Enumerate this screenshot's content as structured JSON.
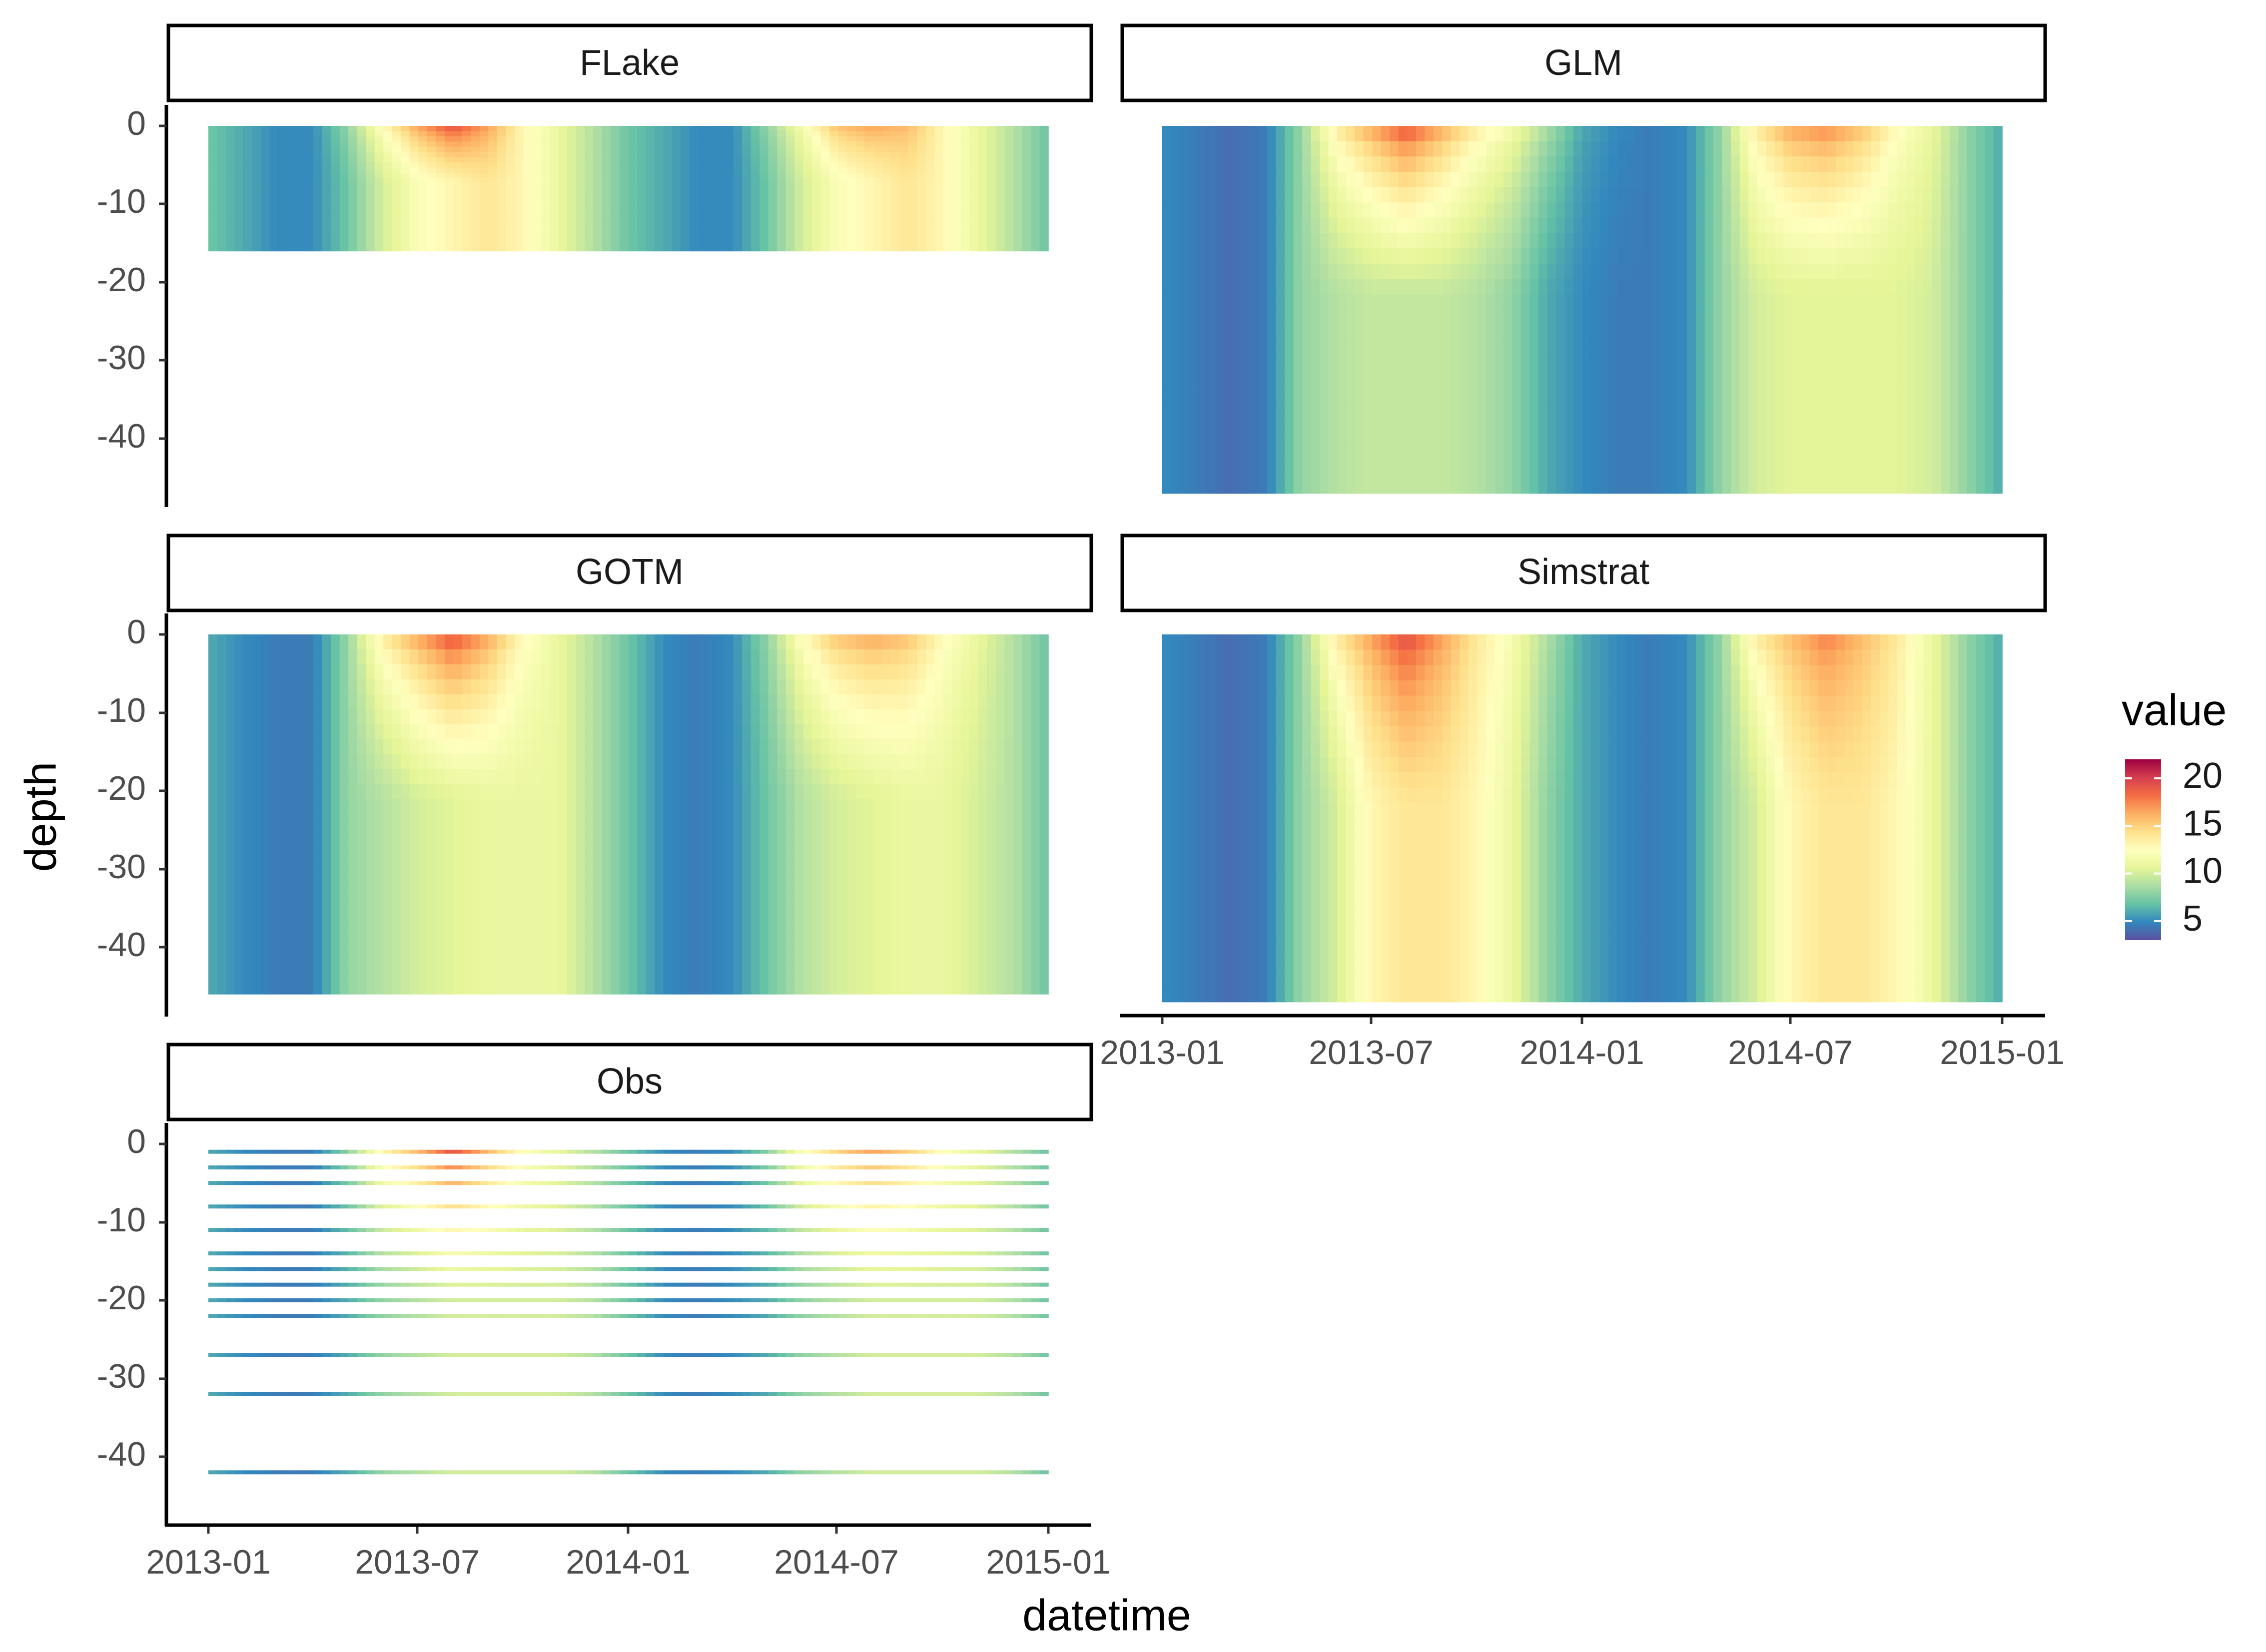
{
  "chart_data": {
    "type": "heatmap",
    "layout": "faceted 3x2 grid, shared color scale",
    "xlabel": "datetime",
    "ylabel": "depth",
    "x_ticks": [
      "2013-01",
      "2013-07",
      "2014-01",
      "2014-07",
      "2015-01"
    ],
    "x_range": [
      "2013-01-01",
      "2015-01-01"
    ],
    "y_ticks": [
      0,
      -10,
      -20,
      -30,
      -40
    ],
    "y_range": [
      -48,
      2
    ],
    "legend": {
      "title": "value",
      "position": "right",
      "ticks": [
        20,
        15,
        10,
        5
      ],
      "range": [
        3,
        22
      ],
      "palette": [
        "#5e4fa2",
        "#3288bd",
        "#66c2a5",
        "#abdda4",
        "#e6f598",
        "#ffffbf",
        "#fee08b",
        "#fdae61",
        "#f46d43",
        "#d53e4f",
        "#9e0142"
      ]
    },
    "facets": [
      {
        "name": "FLake",
        "kind": "model",
        "depth_bottom": -16,
        "dates": [
          "2013-01-01",
          "2013-02-01",
          "2013-03-01",
          "2013-04-01",
          "2013-05-01",
          "2013-06-01",
          "2013-07-01",
          "2013-08-01",
          "2013-09-01",
          "2013-10-01",
          "2013-11-01",
          "2013-12-01",
          "2014-01-01",
          "2014-02-01",
          "2014-03-01",
          "2014-04-01",
          "2014-05-01",
          "2014-06-01",
          "2014-07-01",
          "2014-08-01",
          "2014-09-01",
          "2014-10-01",
          "2014-11-01",
          "2014-12-01",
          "2015-01-01"
        ],
        "surface": [
          7,
          6,
          5,
          5,
          8,
          13,
          17,
          20,
          17,
          13,
          11,
          9,
          7,
          6,
          5,
          5,
          8,
          12,
          16,
          17,
          16,
          13,
          11,
          9,
          7
        ],
        "bottom": [
          7,
          6,
          5,
          5,
          7,
          10,
          12,
          13,
          14,
          13,
          11,
          9,
          7,
          6,
          5,
          5,
          7,
          10,
          12,
          13,
          14,
          13,
          11,
          9,
          7
        ]
      },
      {
        "name": "GLM",
        "kind": "model",
        "depth_bottom": -47,
        "dates": [
          "2013-01-01",
          "2013-02-01",
          "2013-03-01",
          "2013-04-01",
          "2013-05-01",
          "2013-06-01",
          "2013-07-01",
          "2013-08-01",
          "2013-09-01",
          "2013-10-01",
          "2013-11-01",
          "2013-12-01",
          "2014-01-01",
          "2014-02-01",
          "2014-03-01",
          "2014-04-01",
          "2014-05-01",
          "2014-06-01",
          "2014-07-01",
          "2014-08-01",
          "2014-09-01",
          "2014-10-01",
          "2014-11-01",
          "2014-12-01",
          "2015-01-01"
        ],
        "surface": [
          5,
          4.5,
          4,
          4.5,
          8,
          14,
          17,
          20,
          17,
          14,
          12,
          9,
          6,
          5,
          4.5,
          5,
          8,
          14,
          17,
          18,
          16,
          13,
          11,
          8,
          6
        ],
        "bottom": [
          5,
          4.5,
          4,
          4.5,
          8,
          9,
          9.5,
          9.5,
          9.5,
          9,
          8,
          6,
          5,
          4.5,
          4.5,
          5,
          8,
          10,
          10.5,
          10.5,
          10.5,
          10.5,
          10,
          8,
          6
        ]
      },
      {
        "name": "GOTM",
        "kind": "model",
        "depth_bottom": -46,
        "dates": [
          "2013-01-01",
          "2013-02-01",
          "2013-03-01",
          "2013-04-01",
          "2013-05-01",
          "2013-06-01",
          "2013-07-01",
          "2013-08-01",
          "2013-09-01",
          "2013-10-01",
          "2013-11-01",
          "2013-12-01",
          "2014-01-01",
          "2014-02-01",
          "2014-03-01",
          "2014-04-01",
          "2014-05-01",
          "2014-06-01",
          "2014-07-01",
          "2014-08-01",
          "2014-09-01",
          "2014-10-01",
          "2014-11-01",
          "2014-12-01",
          "2015-01-01"
        ],
        "surface": [
          6,
          5,
          4.5,
          4.5,
          8,
          14,
          17,
          20,
          17,
          13,
          11,
          9,
          7,
          5,
          4.5,
          5,
          8,
          13,
          16,
          17,
          16,
          13,
          11,
          9,
          7
        ],
        "bottom": [
          6,
          5,
          4.5,
          4.5,
          8,
          9,
          10,
          10.5,
          11,
          11,
          11,
          9,
          7,
          5,
          4.5,
          5,
          7,
          9,
          10,
          10.5,
          11,
          11,
          10,
          9,
          7
        ]
      },
      {
        "name": "Simstrat",
        "kind": "model",
        "depth_bottom": -47,
        "dates": [
          "2013-01-01",
          "2013-02-01",
          "2013-03-01",
          "2013-04-01",
          "2013-05-01",
          "2013-06-01",
          "2013-07-01",
          "2013-08-01",
          "2013-09-01",
          "2013-10-01",
          "2013-11-01",
          "2013-12-01",
          "2014-01-01",
          "2014-02-01",
          "2014-03-01",
          "2014-04-01",
          "2014-05-01",
          "2014-06-01",
          "2014-07-01",
          "2014-08-01",
          "2014-09-01",
          "2014-10-01",
          "2014-11-01",
          "2014-12-01",
          "2015-01-01"
        ],
        "surface": [
          5,
          4.5,
          4,
          4.5,
          8,
          14,
          17,
          20,
          17,
          14,
          12,
          9,
          6,
          5,
          4.5,
          5,
          8,
          14,
          16,
          18,
          16,
          14,
          11,
          8,
          6
        ],
        "bottom": [
          5,
          4.5,
          4,
          4.5,
          8,
          10,
          13,
          14,
          14,
          13,
          11,
          8,
          6,
          5,
          4.5,
          5,
          8,
          10,
          13,
          14,
          14,
          13,
          11,
          8,
          6
        ]
      },
      {
        "name": "Obs",
        "kind": "observations",
        "depths": [
          -1,
          -3,
          -5,
          -8,
          -11,
          -14,
          -16,
          -18,
          -20,
          -22,
          -27,
          -32,
          -42
        ],
        "dates": [
          "2013-01-01",
          "2013-02-01",
          "2013-03-01",
          "2013-04-01",
          "2013-05-01",
          "2013-06-01",
          "2013-07-01",
          "2013-08-01",
          "2013-09-01",
          "2013-10-01",
          "2013-11-01",
          "2013-12-01",
          "2014-01-01",
          "2014-02-01",
          "2014-03-01",
          "2014-04-01",
          "2014-05-01",
          "2014-06-01",
          "2014-07-01",
          "2014-08-01",
          "2014-09-01",
          "2014-10-01",
          "2014-11-01",
          "2014-12-01",
          "2015-01-01"
        ],
        "surface": [
          6,
          5,
          4.5,
          4.5,
          8,
          14,
          17,
          21,
          17,
          13,
          11,
          9,
          7,
          5,
          4.5,
          5,
          8,
          13,
          16,
          18,
          16,
          13,
          11,
          9,
          7
        ],
        "bottom": [
          6,
          5,
          4.5,
          4.5,
          6,
          8,
          9,
          10,
          10,
          10,
          10,
          9,
          7,
          5,
          4.5,
          5,
          6,
          8,
          9,
          10,
          10,
          10,
          10,
          9,
          7
        ]
      }
    ]
  }
}
